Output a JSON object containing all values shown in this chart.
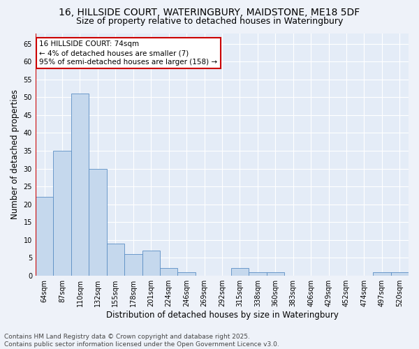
{
  "title": "16, HILLSIDE COURT, WATERINGBURY, MAIDSTONE, ME18 5DF",
  "subtitle": "Size of property relative to detached houses in Wateringbury",
  "xlabel": "Distribution of detached houses by size in Wateringbury",
  "ylabel": "Number of detached properties",
  "categories": [
    "64sqm",
    "87sqm",
    "110sqm",
    "132sqm",
    "155sqm",
    "178sqm",
    "201sqm",
    "224sqm",
    "246sqm",
    "269sqm",
    "292sqm",
    "315sqm",
    "338sqm",
    "360sqm",
    "383sqm",
    "406sqm",
    "429sqm",
    "452sqm",
    "474sqm",
    "497sqm",
    "520sqm"
  ],
  "values": [
    22,
    35,
    51,
    30,
    9,
    6,
    7,
    2,
    1,
    0,
    0,
    2,
    1,
    1,
    0,
    0,
    0,
    0,
    0,
    1,
    1
  ],
  "bar_color": "#c5d8ed",
  "bar_edge_color": "#5b8ec4",
  "annotation_title": "16 HILLSIDE COURT: 74sqm",
  "annotation_line1": "← 4% of detached houses are smaller (7)",
  "annotation_line2": "95% of semi-detached houses are larger (158) →",
  "annotation_box_color": "#ffffff",
  "annotation_box_edge": "#cc0000",
  "vline_color": "#cc0000",
  "ylim": [
    0,
    68
  ],
  "yticks": [
    0,
    5,
    10,
    15,
    20,
    25,
    30,
    35,
    40,
    45,
    50,
    55,
    60,
    65
  ],
  "footer_line1": "Contains HM Land Registry data © Crown copyright and database right 2025.",
  "footer_line2": "Contains public sector information licensed under the Open Government Licence v3.0.",
  "bg_color": "#eef2f9",
  "plot_bg_color": "#e4ecf7",
  "grid_color": "#ffffff",
  "title_fontsize": 10,
  "subtitle_fontsize": 9,
  "axis_label_fontsize": 8.5,
  "tick_fontsize": 7,
  "annotation_fontsize": 7.5,
  "footer_fontsize": 6.5
}
